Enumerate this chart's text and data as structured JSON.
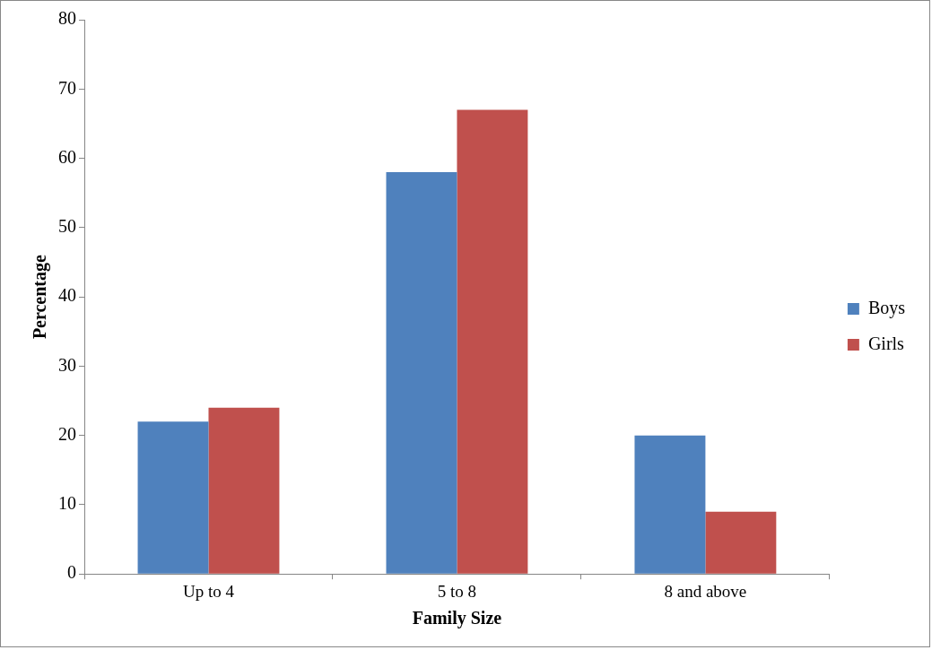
{
  "chart_data": {
    "type": "bar",
    "xlabel": "Family Size",
    "ylabel": "Percentage",
    "categories": [
      "Up to 4",
      "5 to 8",
      "8 and above"
    ],
    "series": [
      {
        "name": "Boys",
        "color": "#4f81bd",
        "values": [
          22,
          58,
          20
        ]
      },
      {
        "name": "Girls",
        "color": "#c0504d",
        "values": [
          24,
          67,
          9
        ]
      }
    ],
    "ylim": [
      0,
      80
    ],
    "yticks": [
      0,
      10,
      20,
      30,
      40,
      50,
      60,
      70,
      80
    ],
    "grid": false,
    "legend": "right"
  }
}
